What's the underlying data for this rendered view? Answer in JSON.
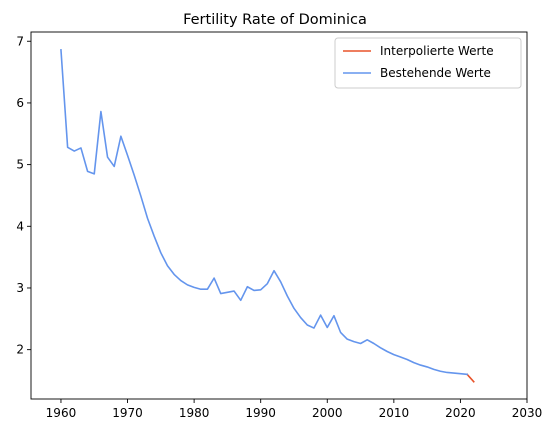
{
  "chart_data": {
    "type": "line",
    "title": "Fertility Rate of Dominica",
    "xlabel": "",
    "ylabel": "",
    "xlim": [
      1955.5,
      2030
    ],
    "ylim": [
      1.2,
      7.15
    ],
    "xticks": [
      1960,
      1970,
      1980,
      1990,
      2000,
      2010,
      2020,
      2030
    ],
    "yticks": [
      2,
      3,
      4,
      5,
      6,
      7
    ],
    "grid": false,
    "legend_position": "top-right",
    "series": [
      {
        "name": "Interpolierte Werte",
        "color": "#e8532a",
        "x": [
          2021,
          2022
        ],
        "y": [
          1.6,
          1.48
        ]
      },
      {
        "name": "Bestehende Werte",
        "color": "#6495ed",
        "x": [
          1960,
          1961,
          1962,
          1963,
          1964,
          1965,
          1966,
          1967,
          1968,
          1969,
          1970,
          1971,
          1972,
          1973,
          1974,
          1975,
          1976,
          1977,
          1978,
          1979,
          1980,
          1981,
          1982,
          1983,
          1984,
          1985,
          1986,
          1987,
          1988,
          1989,
          1990,
          1991,
          1992,
          1993,
          1994,
          1995,
          1996,
          1997,
          1998,
          1999,
          2000,
          2001,
          2002,
          2003,
          2004,
          2005,
          2006,
          2007,
          2008,
          2009,
          2010,
          2011,
          2012,
          2013,
          2014,
          2015,
          2016,
          2017,
          2018,
          2019,
          2020,
          2021
        ],
        "y": [
          6.86,
          5.28,
          5.22,
          5.27,
          4.89,
          4.85,
          5.86,
          5.12,
          4.97,
          5.46,
          5.15,
          4.83,
          4.49,
          4.13,
          3.84,
          3.57,
          3.36,
          3.22,
          3.12,
          3.05,
          3.01,
          2.98,
          2.98,
          3.16,
          2.91,
          2.93,
          2.95,
          2.8,
          3.02,
          2.96,
          2.97,
          3.07,
          3.28,
          3.1,
          2.87,
          2.67,
          2.52,
          2.4,
          2.35,
          2.56,
          2.36,
          2.55,
          2.28,
          2.17,
          2.13,
          2.1,
          2.16,
          2.1,
          2.03,
          1.97,
          1.92,
          1.88,
          1.84,
          1.79,
          1.75,
          1.72,
          1.68,
          1.65,
          1.63,
          1.62,
          1.61,
          1.6
        ]
      }
    ]
  }
}
